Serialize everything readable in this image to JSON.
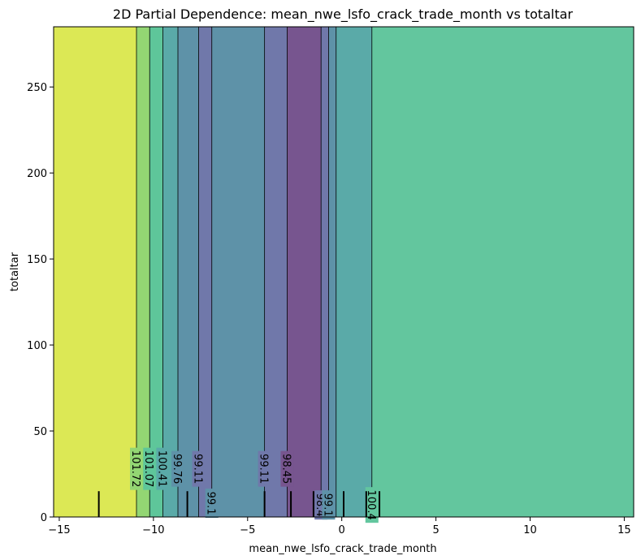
{
  "chart_data": {
    "type": "heatmap",
    "subtype": "partial-dependence-contour",
    "title": "2D Partial Dependence: mean_nwe_lsfo_crack_trade_month vs totaltar",
    "xlabel": "mean_nwe_lsfo_crack_trade_month",
    "ylabel": "totaltar",
    "xlim": [
      -15.3,
      15.5
    ],
    "ylim": [
      0,
      285
    ],
    "xticks": [
      -15,
      -10,
      -5,
      0,
      5,
      10,
      15
    ],
    "yticks": [
      0,
      50,
      100,
      150,
      200,
      250
    ],
    "bands": [
      {
        "x0": -15.3,
        "x1": -10.9,
        "value": 102.0,
        "color": "#dce855"
      },
      {
        "x0": -10.9,
        "x1": -10.2,
        "value": 101.4,
        "color": "#93d673"
      },
      {
        "x0": -10.2,
        "x1": -9.5,
        "value": 100.7,
        "color": "#5ec69a"
      },
      {
        "x0": -9.5,
        "x1": -8.7,
        "value": 100.1,
        "color": "#5aaaa8"
      },
      {
        "x0": -8.7,
        "x1": -7.6,
        "value": 99.4,
        "color": "#5e92a8"
      },
      {
        "x0": -7.6,
        "x1": -6.9,
        "value": 98.8,
        "color": "#7078aa"
      },
      {
        "x0": -6.9,
        "x1": -4.1,
        "value": 99.4,
        "color": "#5e92a8"
      },
      {
        "x0": -4.1,
        "x1": -2.9,
        "value": 98.8,
        "color": "#7078aa"
      },
      {
        "x0": -2.9,
        "x1": -1.1,
        "value": 98.1,
        "color": "#77558f"
      },
      {
        "x0": -1.1,
        "x1": -0.7,
        "value": 98.8,
        "color": "#7078aa"
      },
      {
        "x0": -0.7,
        "x1": -0.3,
        "value": 99.4,
        "color": "#5e92a8"
      },
      {
        "x0": -0.3,
        "x1": 1.6,
        "value": 100.1,
        "color": "#5aaaa8"
      },
      {
        "x0": 1.6,
        "x1": 15.5,
        "value": 100.7,
        "color": "#63c69e"
      }
    ],
    "contour_lines_x": [
      -10.9,
      -10.2,
      -9.5,
      -8.7,
      -7.6,
      -6.9,
      -4.1,
      -2.9,
      -1.1,
      -0.7,
      -0.3,
      1.6
    ],
    "contour_labels": [
      {
        "text": "101.72",
        "x": -10.9,
        "y": 28
      },
      {
        "text": "101.07",
        "x": -10.2,
        "y": 28
      },
      {
        "text": "100.41",
        "x": -9.5,
        "y": 28
      },
      {
        "text": "99.76",
        "x": -8.7,
        "y": 28
      },
      {
        "text": "99.11",
        "x": -7.6,
        "y": 28
      },
      {
        "text": "99.11",
        "x": -4.1,
        "y": 28
      },
      {
        "text": "98.45",
        "x": -2.9,
        "y": 28
      },
      {
        "text": "99.1",
        "x": -6.9,
        "y": 8
      },
      {
        "text": "98.4",
        "x": -1.1,
        "y": 7
      },
      {
        "text": "99.1",
        "x": -0.7,
        "y": 7
      },
      {
        "text": "100.4",
        "x": 1.6,
        "y": 7
      }
    ],
    "rug_x": [
      -12.9,
      -8.2,
      -4.1,
      -2.7,
      -1.5,
      0.1,
      1.3,
      2.0
    ],
    "rug_height": 15
  }
}
